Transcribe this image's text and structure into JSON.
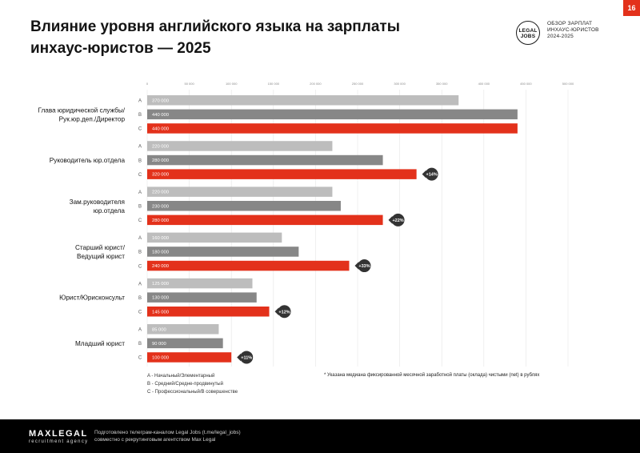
{
  "header": {
    "title_line1": "Влияние уровня английского языка на зарплаты",
    "title_line2": "инхаус-юристов — 2025",
    "page_number": "16",
    "logo_line1": "LEGAL",
    "logo_line2": "JOBS",
    "review_line1": "ОБЗОР ЗАРПЛАТ",
    "review_line2": "ИНХАУС-ЮРИСТОВ",
    "review_line3": "2024-2025"
  },
  "chart_data": {
    "type": "bar",
    "orientation": "horizontal",
    "x_ticks": [
      "0",
      "50 000",
      "100 000",
      "150 000",
      "200 000",
      "250 000",
      "300 000",
      "350 000",
      "400 000",
      "450 000",
      "500 000"
    ],
    "xlim": [
      0,
      500000
    ],
    "grid": true,
    "level_colors": {
      "A": "#bdbdbd",
      "B": "#878787",
      "C": "#e3311b"
    },
    "groups": [
      {
        "label_lines": [
          "Глава юридической службы/",
          "Рук.юр.деп./Директор"
        ],
        "bars": [
          {
            "level": "A",
            "value": 370000,
            "label": "370 000"
          },
          {
            "level": "B",
            "value": 440000,
            "label": "440 000"
          },
          {
            "level": "C",
            "value": 440000,
            "label": "440 000"
          }
        ],
        "premium": ""
      },
      {
        "label_lines": [
          "Руководитель юр.отдела"
        ],
        "bars": [
          {
            "level": "A",
            "value": 220000,
            "label": "220 000"
          },
          {
            "level": "B",
            "value": 280000,
            "label": "280 000"
          },
          {
            "level": "C",
            "value": 320000,
            "label": "320 000"
          }
        ],
        "premium": "+14%"
      },
      {
        "label_lines": [
          "Зам.руководителя",
          "юр.отдела"
        ],
        "bars": [
          {
            "level": "A",
            "value": 220000,
            "label": "220 000"
          },
          {
            "level": "B",
            "value": 230000,
            "label": "230 000"
          },
          {
            "level": "C",
            "value": 280000,
            "label": "280 000"
          }
        ],
        "premium": "+22%"
      },
      {
        "label_lines": [
          "Старший юрист/",
          "Ведущий юрист"
        ],
        "bars": [
          {
            "level": "A",
            "value": 160000,
            "label": "160 000"
          },
          {
            "level": "B",
            "value": 180000,
            "label": "180 000"
          },
          {
            "level": "C",
            "value": 240000,
            "label": "240 000"
          }
        ],
        "premium": "+33%"
      },
      {
        "label_lines": [
          "Юрист/Юрисконсульт"
        ],
        "bars": [
          {
            "level": "A",
            "value": 125000,
            "label": "125 000"
          },
          {
            "level": "B",
            "value": 130000,
            "label": "130 000"
          },
          {
            "level": "C",
            "value": 145000,
            "label": "145 000"
          }
        ],
        "premium": "+12%"
      },
      {
        "label_lines": [
          "Младший юрист"
        ],
        "bars": [
          {
            "level": "A",
            "value": 85000,
            "label": "85 000"
          },
          {
            "level": "B",
            "value": 90000,
            "label": "90 000"
          },
          {
            "level": "C",
            "value": 100000,
            "label": "100 000"
          }
        ],
        "premium": "+11%"
      }
    ]
  },
  "legend": {
    "a": "A  - Начальный/Элементарный",
    "b": "B  - Средний/Средне-продвинутый",
    "c": "C  - Профессиональный/В совершенстве"
  },
  "note": "* Указана медиана фиксированной месячной заработной платы (оклада) чистыми (net) в рублях",
  "footer": {
    "brand": "MAXLEGAL",
    "brand_sub": "recruitment agency",
    "credits_line1": "Подготовлено телеграм-каналом Legal Jobs (t.me/legal_jobs)",
    "credits_line2": "совместно с рекрутинговым агентством Max Legal"
  }
}
